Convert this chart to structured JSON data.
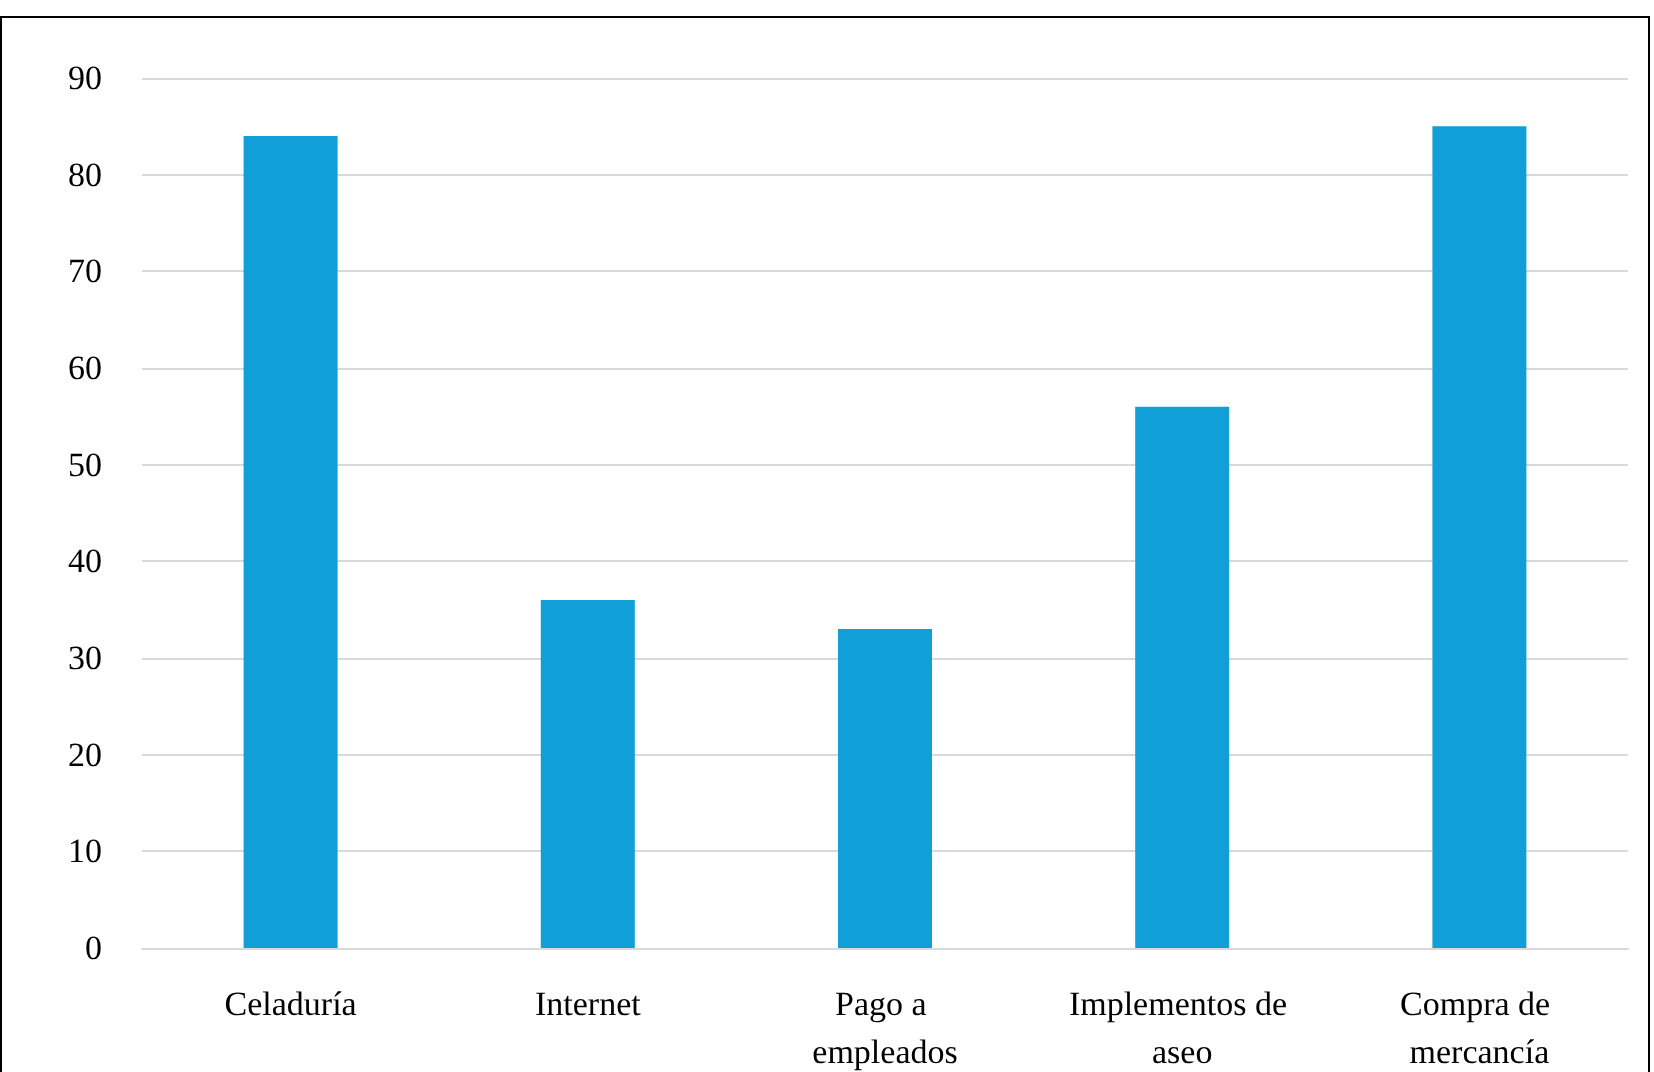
{
  "chart_data": {
    "type": "bar",
    "categories": [
      "Celaduría",
      "Internet",
      "Pago a empleados",
      "Implementos de aseo",
      "Compra de mercancía"
    ],
    "values": [
      84,
      36,
      33,
      56,
      85
    ],
    "color": "#119fd8",
    "ylim": [
      0,
      90
    ],
    "yticks": [
      0,
      10,
      20,
      30,
      40,
      50,
      60,
      70,
      80,
      90
    ],
    "grid": "y"
  }
}
